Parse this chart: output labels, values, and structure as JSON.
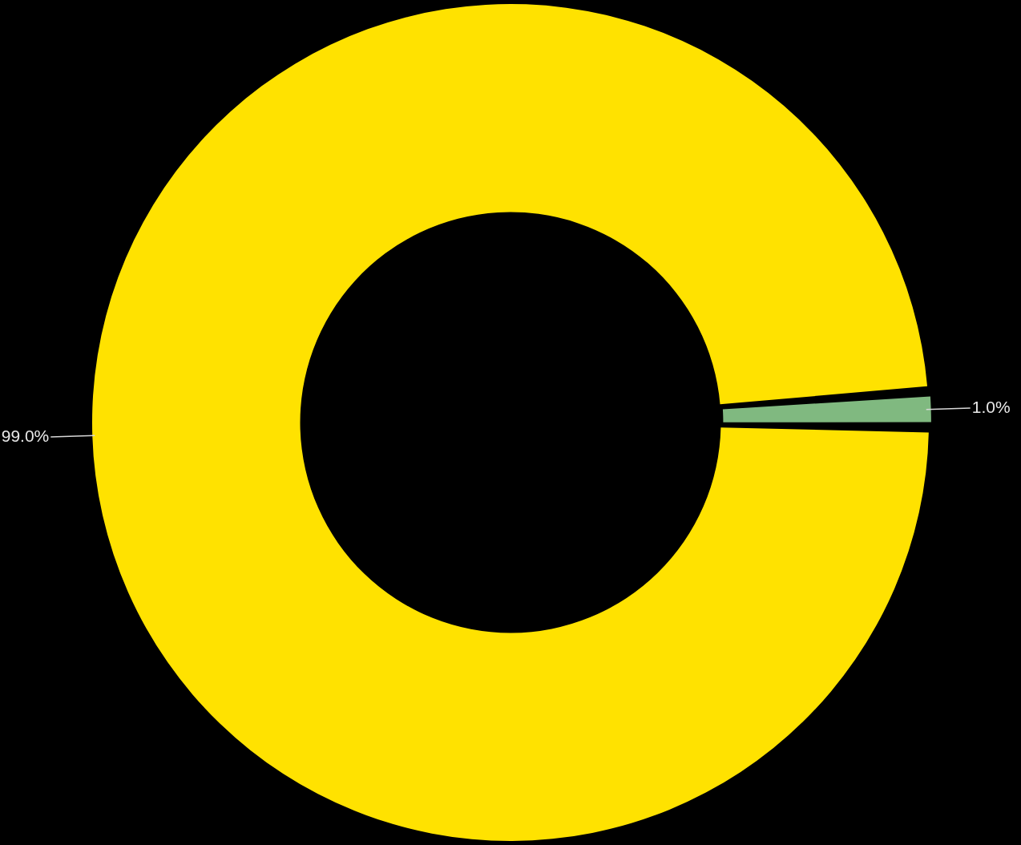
{
  "chart_data": {
    "type": "donut",
    "categories": [
      null,
      null
    ],
    "values": [
      99,
      1
    ],
    "colors": [
      "#ffe200",
      "#80b980"
    ],
    "value_labels": [
      "99.0%",
      "1.0%"
    ]
  }
}
